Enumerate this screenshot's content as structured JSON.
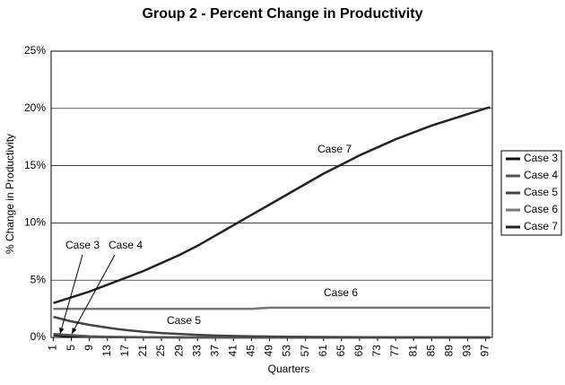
{
  "chart_data": {
    "type": "line",
    "title": "Group 2 - Percent Change in Productivity",
    "x_label": "Quarters",
    "y_label": "% Change in Productivity",
    "x": [
      1,
      5,
      9,
      13,
      17,
      21,
      25,
      29,
      33,
      37,
      41,
      45,
      49,
      53,
      57,
      61,
      65,
      69,
      73,
      77,
      81,
      85,
      89,
      93,
      97,
      98
    ],
    "xlim": [
      0.5,
      98.5
    ],
    "xticks": [
      1,
      5,
      9,
      13,
      17,
      21,
      25,
      29,
      33,
      37,
      41,
      45,
      49,
      53,
      57,
      61,
      65,
      69,
      73,
      77,
      81,
      85,
      89,
      93,
      97
    ],
    "ylim": [
      0,
      25
    ],
    "yticks": [
      {
        "value": 0,
        "label": "0%"
      },
      {
        "value": 5,
        "label": "5%"
      },
      {
        "value": 10,
        "label": "10%"
      },
      {
        "value": 15,
        "label": "15%"
      },
      {
        "value": 20,
        "label": "20%"
      },
      {
        "value": 25,
        "label": "25%"
      }
    ],
    "grid": true,
    "legend": "right",
    "series": [
      {
        "name": "Case 3",
        "color": "#111111",
        "values": [
          0.2,
          0.1,
          0.05,
          0.03,
          0.02,
          0.01,
          0.01,
          0,
          0,
          0,
          0,
          0,
          0,
          0,
          0,
          0,
          0,
          0,
          0,
          0,
          0,
          0,
          0,
          0,
          0,
          0
        ]
      },
      {
        "name": "Case 4",
        "color": "#555555",
        "values": [
          0.3,
          0.2,
          0.1,
          0.06,
          0.04,
          0.02,
          0.01,
          0.01,
          0,
          0,
          0,
          0,
          0,
          0,
          0,
          0,
          0,
          0,
          0,
          0,
          0,
          0,
          0,
          0,
          0,
          0
        ]
      },
      {
        "name": "Case 5",
        "color": "#444444",
        "values": [
          1.8,
          1.4,
          1.1,
          0.85,
          0.65,
          0.5,
          0.38,
          0.3,
          0.23,
          0.17,
          0.13,
          0.1,
          0.08,
          0.06,
          0.05,
          0.04,
          0.03,
          0.02,
          0.02,
          0.01,
          0.01,
          0.01,
          0.01,
          0,
          0,
          0
        ]
      },
      {
        "name": "Case 6",
        "color": "#777777",
        "values": [
          2.5,
          2.5,
          2.5,
          2.5,
          2.5,
          2.5,
          2.5,
          2.5,
          2.5,
          2.5,
          2.5,
          2.5,
          2.6,
          2.6,
          2.6,
          2.6,
          2.6,
          2.6,
          2.6,
          2.6,
          2.6,
          2.6,
          2.6,
          2.6,
          2.6,
          2.6
        ]
      },
      {
        "name": "Case 7",
        "color": "#222222",
        "values": [
          3.0,
          3.5,
          4.0,
          4.6,
          5.2,
          5.8,
          6.5,
          7.2,
          8.0,
          8.9,
          9.8,
          10.7,
          11.6,
          12.5,
          13.4,
          14.3,
          15.1,
          15.9,
          16.6,
          17.3,
          17.9,
          18.5,
          19.0,
          19.5,
          20.0,
          20.1
        ]
      }
    ],
    "annotations": [
      "Case 7",
      "Case 6",
      "Case 5",
      "Case 3",
      "Case 4"
    ]
  }
}
